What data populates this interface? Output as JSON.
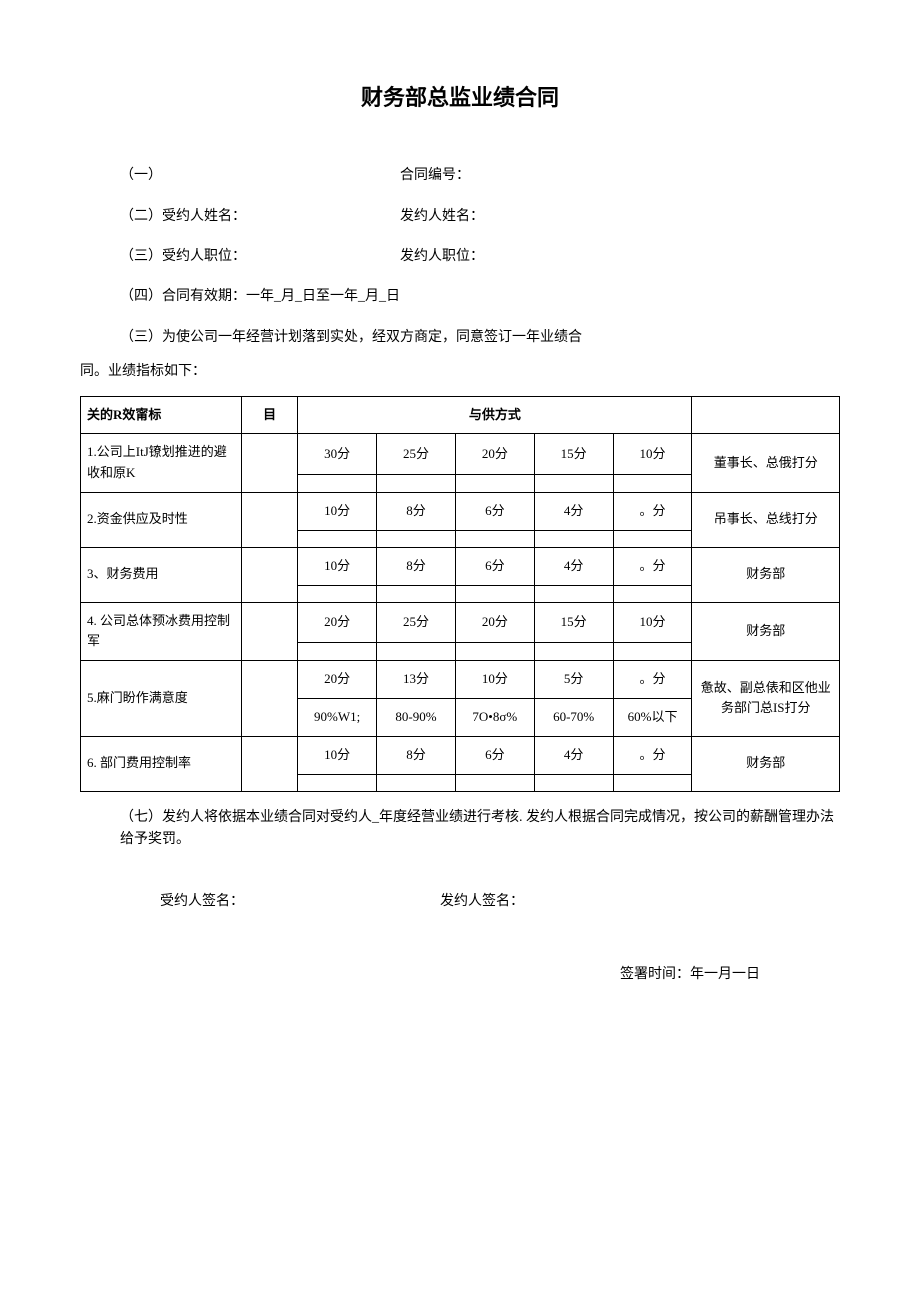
{
  "title": "财务部总监业绩合同",
  "fields": {
    "f1_label": "（一）",
    "f1_value": "合同编号：",
    "f2_left": "（二）受约人姓名：",
    "f2_right": "发约人姓名：",
    "f3_left": "（三）受约人职位：",
    "f3_right": "发约人职位：",
    "f4": "（四）合同有效期：一年_月_日至一年_月_日",
    "intro1": "（三）为使公司一年经营计划落到实处，经双方商定，同意签订一年业绩合",
    "intro2": "同。业绩指标如下："
  },
  "table": {
    "header": {
      "indicator": "关的R效甯标",
      "target": "目",
      "method": "与供方式",
      "evaluator": ""
    },
    "rows": [
      {
        "indicator": "1.公司上ItJ镣划推进的避收和原K",
        "scores": [
          "30分",
          "25分",
          "20分",
          "15分",
          "10分"
        ],
        "evaluator": "董事长、总俄打分"
      },
      {
        "indicator": "2.资金供应及时性",
        "scores": [
          "10分",
          "8分",
          "6分",
          "4分",
          "。分"
        ],
        "evaluator": "吊事长、总线打分"
      },
      {
        "indicator": "3、财务费用",
        "scores": [
          "10分",
          "8分",
          "6分",
          "4分",
          "。分"
        ],
        "evaluator": "财务部"
      },
      {
        "indicator": "4. 公司总体预冰费用控制军",
        "scores": [
          "20分",
          "25分",
          "20分",
          "15分",
          "10分"
        ],
        "evaluator": "财务部"
      },
      {
        "indicator": "5.麻门盼作满意度",
        "scores": [
          "20分",
          "13分",
          "10分",
          "5分",
          "。分"
        ],
        "ranges": [
          "90%W1;",
          "80-90%",
          "7O•8σ%",
          "60-70%",
          "60%以下"
        ],
        "evaluator": "惫故、副总俵和区他业务部门总IS打分"
      },
      {
        "indicator": "6. 部门费用控制率",
        "scores": [
          "10分",
          "8分",
          "6分",
          "4分",
          "。分"
        ],
        "evaluator": "财务部"
      }
    ]
  },
  "footer": "（七）发约人将依据本业绩合同对受约人_年度经营业绩进行考核. 发约人根据合同完成情况，按公司的薪酬管理办法给予奖罚。",
  "sign_left": "受约人签名：",
  "sign_right": "发约人签名：",
  "date": "签署时间：年一月一日"
}
